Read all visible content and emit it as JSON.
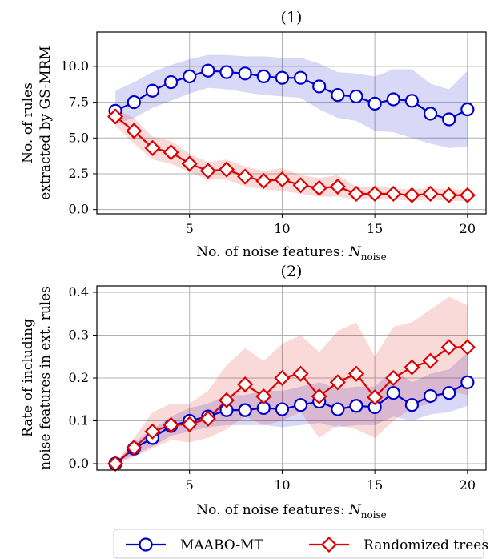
{
  "figure": {
    "legend": [
      {
        "label": "MAABO-MT",
        "color": "#0000cc",
        "marker": "circle"
      },
      {
        "label": "Randomized trees",
        "color": "#dd0000",
        "marker": "diamond"
      }
    ]
  },
  "chart_data": [
    {
      "type": "line",
      "title": "(1)",
      "xlabel": "No. of noise features: N_noise",
      "xlabel_parts": {
        "text": "No. of noise features: ",
        "var": "N",
        "sub": "noise"
      },
      "ylabel": [
        "No. of rules",
        "extracted by GS-MRM"
      ],
      "xlim": [
        0,
        21
      ],
      "ylim": [
        -0.3,
        12.4
      ],
      "xticks": [
        5,
        10,
        15,
        20
      ],
      "yticks": [
        0.0,
        2.5,
        5.0,
        7.5,
        10.0
      ],
      "ytick_labels": [
        "0.0",
        "2.5",
        "5.0",
        "7.5",
        "10.0"
      ],
      "grid": true,
      "x": [
        1,
        2,
        3,
        4,
        5,
        6,
        7,
        8,
        9,
        10,
        11,
        12,
        13,
        14,
        15,
        16,
        17,
        18,
        19,
        20
      ],
      "series": [
        {
          "name": "MAABO-MT",
          "color": "#0000cc",
          "marker": "circle",
          "values": [
            6.9,
            7.5,
            8.3,
            8.9,
            9.3,
            9.7,
            9.6,
            9.5,
            9.3,
            9.2,
            9.2,
            8.6,
            8.0,
            7.9,
            7.4,
            7.7,
            7.6,
            6.7,
            6.3,
            7.0
          ],
          "lower": [
            6.0,
            6.4,
            7.1,
            7.6,
            8.1,
            8.5,
            8.4,
            8.2,
            8.0,
            7.9,
            7.8,
            7.0,
            6.4,
            6.2,
            5.5,
            5.4,
            5.0,
            4.6,
            4.3,
            4.4
          ],
          "upper": [
            8.3,
            8.9,
            9.6,
            10.1,
            10.5,
            10.8,
            10.8,
            10.7,
            10.7,
            10.6,
            10.6,
            10.2,
            9.6,
            9.5,
            9.3,
            9.8,
            9.8,
            8.8,
            8.4,
            9.7
          ]
        },
        {
          "name": "Randomized trees",
          "color": "#dd0000",
          "marker": "diamond",
          "values": [
            6.5,
            5.5,
            4.3,
            4.0,
            3.2,
            2.7,
            2.8,
            2.3,
            2.0,
            2.1,
            1.7,
            1.5,
            1.6,
            1.1,
            1.1,
            1.1,
            1.0,
            1.1,
            1.0,
            1.0
          ],
          "lower": [
            5.9,
            4.6,
            3.5,
            3.2,
            2.6,
            2.1,
            2.1,
            1.6,
            1.4,
            1.3,
            1.1,
            0.9,
            0.9,
            0.7,
            0.7,
            0.7,
            0.6,
            0.7,
            0.6,
            0.6
          ],
          "upper": [
            7.0,
            6.4,
            5.1,
            4.8,
            3.9,
            3.3,
            3.5,
            3.0,
            2.7,
            2.9,
            2.4,
            2.2,
            2.4,
            1.6,
            1.6,
            1.5,
            1.4,
            1.5,
            1.4,
            1.4
          ]
        }
      ]
    },
    {
      "type": "line",
      "title": "(2)",
      "xlabel": "No. of noise features: N_noise",
      "xlabel_parts": {
        "text": "No. of noise features: ",
        "var": "N",
        "sub": "noise"
      },
      "ylabel": [
        "Rate of including",
        "noise features in ext. rules"
      ],
      "xlim": [
        0,
        21
      ],
      "ylim": [
        -0.015,
        0.415
      ],
      "xticks": [
        5,
        10,
        15,
        20
      ],
      "yticks": [
        0.0,
        0.1,
        0.2,
        0.3,
        0.4
      ],
      "ytick_labels": [
        "0.0",
        "0.1",
        "0.2",
        "0.3",
        "0.4"
      ],
      "grid": true,
      "x": [
        1,
        2,
        3,
        4,
        5,
        6,
        7,
        8,
        9,
        10,
        11,
        12,
        13,
        14,
        15,
        16,
        17,
        18,
        19,
        20
      ],
      "series": [
        {
          "name": "MAABO-MT",
          "color": "#0000cc",
          "marker": "circle",
          "values": [
            0.0,
            0.035,
            0.06,
            0.088,
            0.1,
            0.11,
            0.125,
            0.125,
            0.13,
            0.127,
            0.137,
            0.145,
            0.127,
            0.135,
            0.132,
            0.165,
            0.137,
            0.158,
            0.165,
            0.19
          ],
          "lower": [
            0.0,
            0.02,
            0.04,
            0.065,
            0.075,
            0.085,
            0.09,
            0.09,
            0.09,
            0.085,
            0.09,
            0.095,
            0.085,
            0.09,
            0.09,
            0.11,
            0.1,
            0.115,
            0.12,
            0.135
          ],
          "upper": [
            0.0,
            0.05,
            0.08,
            0.11,
            0.13,
            0.14,
            0.16,
            0.16,
            0.17,
            0.17,
            0.18,
            0.19,
            0.175,
            0.18,
            0.18,
            0.22,
            0.19,
            0.21,
            0.22,
            0.26
          ]
        },
        {
          "name": "Randomized trees",
          "color": "#dd0000",
          "marker": "diamond",
          "values": [
            0.0,
            0.037,
            0.075,
            0.09,
            0.092,
            0.105,
            0.148,
            0.185,
            0.157,
            0.2,
            0.21,
            0.157,
            0.19,
            0.21,
            0.155,
            0.2,
            0.225,
            0.24,
            0.272,
            0.272
          ],
          "lower": [
            0.0,
            0.015,
            0.035,
            0.055,
            0.05,
            0.06,
            0.08,
            0.11,
            0.09,
            0.1,
            0.12,
            0.06,
            0.09,
            0.08,
            0.06,
            0.1,
            0.13,
            0.14,
            0.17,
            0.16
          ],
          "upper": [
            0.0,
            0.06,
            0.12,
            0.14,
            0.14,
            0.17,
            0.23,
            0.27,
            0.24,
            0.28,
            0.3,
            0.26,
            0.31,
            0.33,
            0.25,
            0.32,
            0.33,
            0.36,
            0.39,
            0.37
          ]
        }
      ]
    }
  ]
}
